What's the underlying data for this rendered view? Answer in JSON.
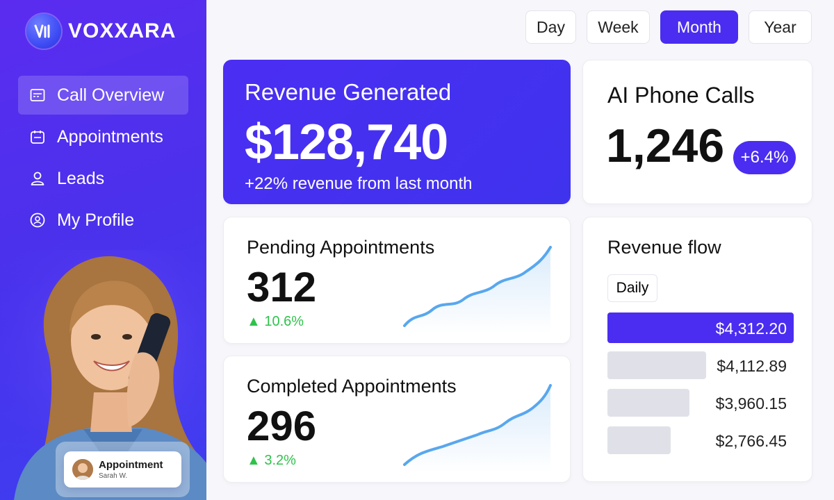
{
  "brand": {
    "name": "VOXXARA",
    "logo_icon": "voice-wave-icon"
  },
  "sidebar": {
    "items": [
      {
        "label": "Call Overview",
        "icon": "dashboard-icon",
        "active": true
      },
      {
        "label": "Appointments",
        "icon": "calendar-icon",
        "active": false
      },
      {
        "label": "Leads",
        "icon": "person-icon",
        "active": false
      },
      {
        "label": "My Profile",
        "icon": "profile-circle-icon",
        "active": false
      }
    ]
  },
  "toast": {
    "title": "Appointment",
    "name": "Sarah W."
  },
  "periods": {
    "tabs": [
      "Day",
      "Week",
      "Month",
      "Year"
    ],
    "active": "Month"
  },
  "revenue": {
    "title": "Revenue Generated",
    "value": "$128,740",
    "subtitle": "+22% revenue from last month"
  },
  "calls": {
    "title": "AI Phone Calls",
    "value": "1,246",
    "badge": "+6.4%"
  },
  "pending": {
    "title": "Pending Appointments",
    "value": "312",
    "delta": "▲ 10.6%"
  },
  "completed": {
    "title": "Completed Appointments",
    "value": "296",
    "delta": "▲ 3.2%"
  },
  "flow": {
    "title": "Revenue flow",
    "filter": "Daily",
    "rows": [
      {
        "amount": "$4,312.20",
        "fill": 1.0
      },
      {
        "amount": "$4,112.89",
        "fill": 0.53
      },
      {
        "amount": "$3,960.15",
        "fill": 0.44
      },
      {
        "amount": "$2,766.45",
        "fill": 0.34
      }
    ]
  },
  "colors": {
    "accent": "#4a2df0",
    "positive": "#2fc24b",
    "sparkline": "#58a7ee"
  }
}
